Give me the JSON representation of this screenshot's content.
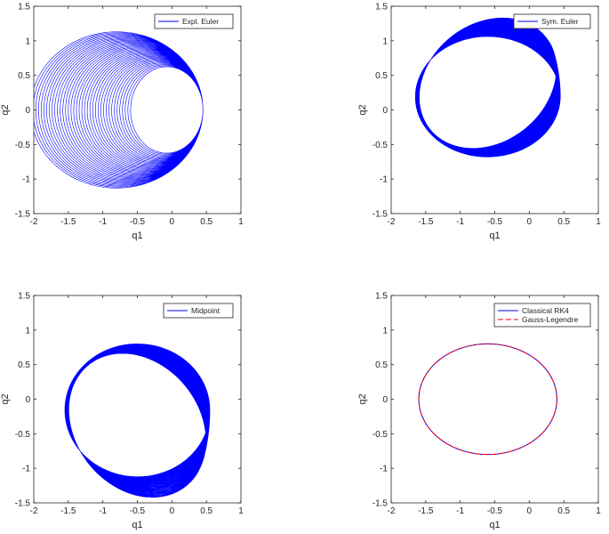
{
  "chart_data": [
    {
      "type": "line",
      "xlabel": "q1",
      "ylabel": "q2",
      "xlim": [
        -2,
        1
      ],
      "ylim": [
        -1.5,
        1.5
      ],
      "xticks": [
        "-2",
        "-1.5",
        "-1",
        "-0.5",
        "0",
        "0.5",
        "1"
      ],
      "yticks": [
        "-1.5",
        "-1",
        "-0.5",
        "0",
        "0.5",
        "1",
        "1.5"
      ],
      "legend_position": "top-right",
      "series": [
        {
          "name": "Expl. Euler",
          "color": "#0000ff",
          "style": "solid",
          "kind": "expanding_spiral",
          "x_range": [
            -2.05,
            0.45
          ],
          "y_range": [
            -1.13,
            1.13
          ]
        }
      ]
    },
    {
      "type": "line",
      "xlabel": "q1",
      "ylabel": "q2",
      "xlim": [
        -2,
        1
      ],
      "ylim": [
        -1.5,
        1.5
      ],
      "xticks": [
        "-2",
        "-1.5",
        "-1",
        "-0.5",
        "0",
        "0.5",
        "1"
      ],
      "yticks": [
        "-1.5",
        "-1",
        "-0.5",
        "0",
        "0.5",
        "1",
        "1.5"
      ],
      "legend_position": "top-right",
      "series": [
        {
          "name": "Sym. Euler",
          "color": "#0000ff",
          "style": "solid",
          "kind": "rotating_band",
          "x_range": [
            -1.65,
            0.45
          ],
          "y_range": [
            -0.68,
            1.33
          ]
        }
      ]
    },
    {
      "type": "line",
      "xlabel": "q1",
      "ylabel": "q2",
      "xlim": [
        -2,
        1
      ],
      "ylim": [
        -1.5,
        1.5
      ],
      "xticks": [
        "-2",
        "-1.5",
        "-1",
        "-0.5",
        "0",
        "0.5",
        "1"
      ],
      "yticks": [
        "-1.5",
        "-1",
        "-0.5",
        "0",
        "0.5",
        "1",
        "1.5"
      ],
      "legend_position": "top-right",
      "series": [
        {
          "name": "Midpoint",
          "color": "#0000ff",
          "style": "solid",
          "kind": "rotating_band",
          "x_range": [
            -1.55,
            0.55
          ],
          "y_range": [
            -1.42,
            0.8
          ]
        }
      ]
    },
    {
      "type": "line",
      "xlabel": "q1",
      "ylabel": "q2",
      "xlim": [
        -2,
        1
      ],
      "ylim": [
        -1.5,
        1.5
      ],
      "xticks": [
        "-2",
        "-1.5",
        "-1",
        "-0.5",
        "0",
        "0.5",
        "1"
      ],
      "yticks": [
        "-1.5",
        "-1",
        "-0.5",
        "0",
        "0.5",
        "1",
        "1.5"
      ],
      "legend_position": "top-right",
      "series": [
        {
          "name": "Classical RK4",
          "color": "#0000ff",
          "style": "solid",
          "kind": "closed_orbit",
          "x_range": [
            -1.6,
            0.4
          ],
          "y_range": [
            -0.8,
            0.8
          ]
        },
        {
          "name": "Gauss-Legendre",
          "color": "#ff0000",
          "style": "dashed",
          "kind": "closed_orbit",
          "x_range": [
            -1.6,
            0.4
          ],
          "y_range": [
            -0.8,
            0.8
          ]
        }
      ]
    }
  ]
}
